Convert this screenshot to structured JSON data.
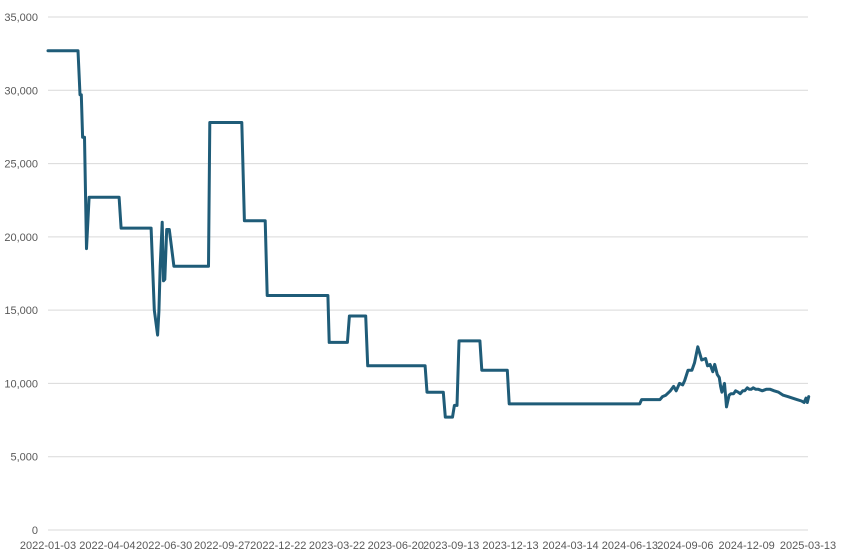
{
  "chart_data": {
    "type": "line",
    "title": "",
    "xlabel": "",
    "ylabel": "",
    "ylim": [
      0,
      35000
    ],
    "grid": true,
    "legend": "none",
    "y_ticks": [
      "0",
      "5,000",
      "10,000",
      "15,000",
      "20,000",
      "25,000",
      "30,000",
      "35,000"
    ],
    "y_tick_values": [
      0,
      5000,
      10000,
      15000,
      20000,
      25000,
      30000,
      35000
    ],
    "x_tick_labels": [
      "2022-01-03",
      "2022-04-04",
      "2022-06-30",
      "2022-09-27",
      "2022-12-22",
      "2023-03-22",
      "2023-06-20",
      "2023-09-13",
      "2023-12-13",
      "2024-03-14",
      "2024-06-13",
      "2024-09-06",
      "2024-12-09",
      "2025-03-13"
    ],
    "colors": {
      "line": "#1f5c78",
      "grid": "#d9d9d9",
      "tick_text": "#595959"
    },
    "series": [
      {
        "x": [
          "2022-01-03",
          "2022-02-18",
          "2022-02-21",
          "2022-02-23",
          "2022-02-25",
          "2022-02-28",
          "2022-03-03",
          "2022-03-07",
          "2022-03-09",
          "2022-03-11",
          "2022-03-14",
          "2022-03-16",
          "2022-04-22",
          "2022-04-25",
          "2022-06-10",
          "2022-06-15",
          "2022-06-20",
          "2022-06-22",
          "2022-06-24",
          "2022-06-27",
          "2022-06-29",
          "2022-07-01",
          "2022-07-04",
          "2022-07-06",
          "2022-07-08",
          "2022-07-15",
          "2022-07-18",
          "2022-07-25",
          "2022-07-27",
          "2022-09-06",
          "2022-09-08",
          "2022-10-27",
          "2022-10-31",
          "2022-12-02",
          "2022-12-05",
          "2023-03-08",
          "2023-03-10",
          "2023-04-07",
          "2023-04-10",
          "2023-05-05",
          "2023-05-08",
          "2023-08-04",
          "2023-08-07",
          "2023-09-01",
          "2023-09-04",
          "2023-09-15",
          "2023-09-18",
          "2023-09-22",
          "2023-09-25",
          "2023-10-27",
          "2023-10-30",
          "2023-12-08",
          "2023-12-11",
          "2024-06-28",
          "2024-07-01",
          "2024-07-29",
          "2024-08-02",
          "2024-08-07",
          "2024-08-14",
          "2024-08-19",
          "2024-08-23",
          "2024-08-28",
          "2024-09-02",
          "2024-09-05",
          "2024-09-10",
          "2024-09-16",
          "2024-09-20",
          "2024-09-25",
          "2024-10-01",
          "2024-10-07",
          "2024-10-10",
          "2024-10-14",
          "2024-10-18",
          "2024-10-21",
          "2024-10-25",
          "2024-10-28",
          "2024-10-30",
          "2024-11-01",
          "2024-11-05",
          "2024-11-08",
          "2024-11-12",
          "2024-11-15",
          "2024-11-19",
          "2024-11-22",
          "2024-11-26",
          "2024-11-29",
          "2024-12-03",
          "2024-12-06",
          "2024-12-10",
          "2024-12-13",
          "2024-12-16",
          "2024-12-19",
          "2024-12-23",
          "2024-12-27",
          "2025-01-02",
          "2025-01-08",
          "2025-01-14",
          "2025-01-20",
          "2025-01-27",
          "2025-02-03",
          "2025-02-10",
          "2025-02-17",
          "2025-02-24",
          "2025-03-03",
          "2025-03-07",
          "2025-03-10",
          "2025-03-12",
          "2025-03-14"
        ],
        "values": [
          32700,
          32700,
          29700,
          29700,
          26800,
          26800,
          19200,
          22700,
          22700,
          22700,
          22700,
          22700,
          22700,
          20600,
          20600,
          15000,
          13300,
          14900,
          18000,
          21000,
          17000,
          17100,
          20500,
          20500,
          20500,
          18000,
          18000,
          18000,
          18000,
          18000,
          27800,
          27800,
          21100,
          21100,
          16000,
          16000,
          12800,
          12800,
          14600,
          14600,
          11200,
          11200,
          9400,
          9400,
          7700,
          7700,
          8500,
          8500,
          12900,
          12900,
          10900,
          10900,
          8600,
          8600,
          8900,
          8900,
          9100,
          9200,
          9500,
          9800,
          9500,
          10000,
          9900,
          10200,
          10900,
          10900,
          11400,
          12500,
          11600,
          11700,
          11200,
          11300,
          10800,
          11300,
          10600,
          10400,
          9800,
          9400,
          10000,
          8400,
          9200,
          9300,
          9300,
          9500,
          9400,
          9300,
          9500,
          9500,
          9700,
          9600,
          9600,
          9700,
          9600,
          9600,
          9500,
          9600,
          9600,
          9500,
          9400,
          9200,
          9100,
          9000,
          8900,
          8800,
          8700,
          9000,
          8700,
          9100
        ]
      }
    ]
  }
}
